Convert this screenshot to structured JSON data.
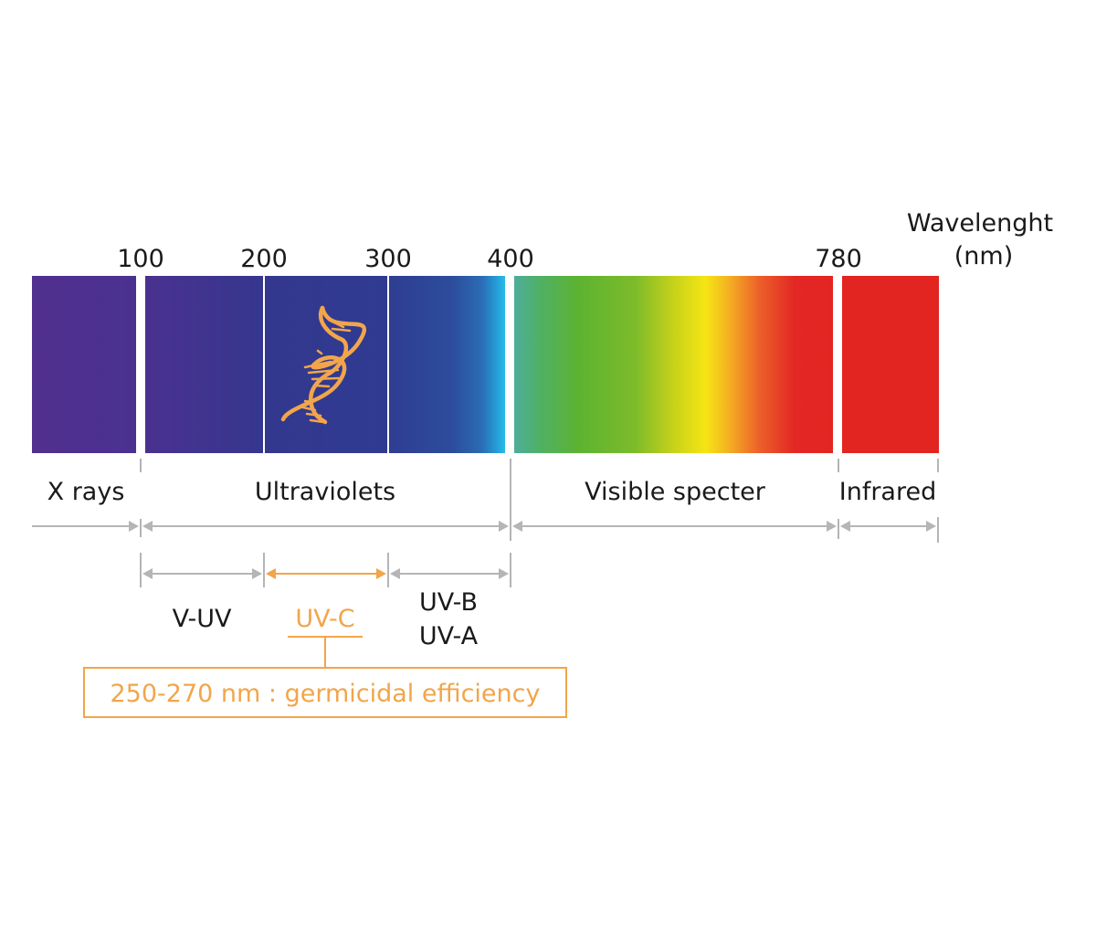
{
  "axis": {
    "title_line1": "Wavelenght",
    "title_line2": "(nm)",
    "ticks": [
      {
        "value": 100,
        "label": "100"
      },
      {
        "value": 200,
        "label": "200"
      },
      {
        "value": 300,
        "label": "300"
      },
      {
        "value": 400,
        "label": "400"
      },
      {
        "value": 780,
        "label": "780"
      }
    ]
  },
  "bands": {
    "xrays": "X rays",
    "ultraviolets": "Ultraviolets",
    "visible": "Visible specter",
    "infrared": "Infrared"
  },
  "uv_subbands": {
    "vuv": "V-UV",
    "uvc": "UV-C",
    "uvb": "UV-B",
    "uva": "UV-A"
  },
  "callout": {
    "text": "250-270 nm : germicidal efficiency"
  },
  "colors": {
    "accent": "#f2a54a",
    "divider": "#b5b5b5",
    "xray_purple": "#4d3190",
    "uv_blue": "#2d3b8e",
    "infrared_red": "#e32522"
  },
  "icons": {
    "uvc_strip": "dna-icon"
  }
}
